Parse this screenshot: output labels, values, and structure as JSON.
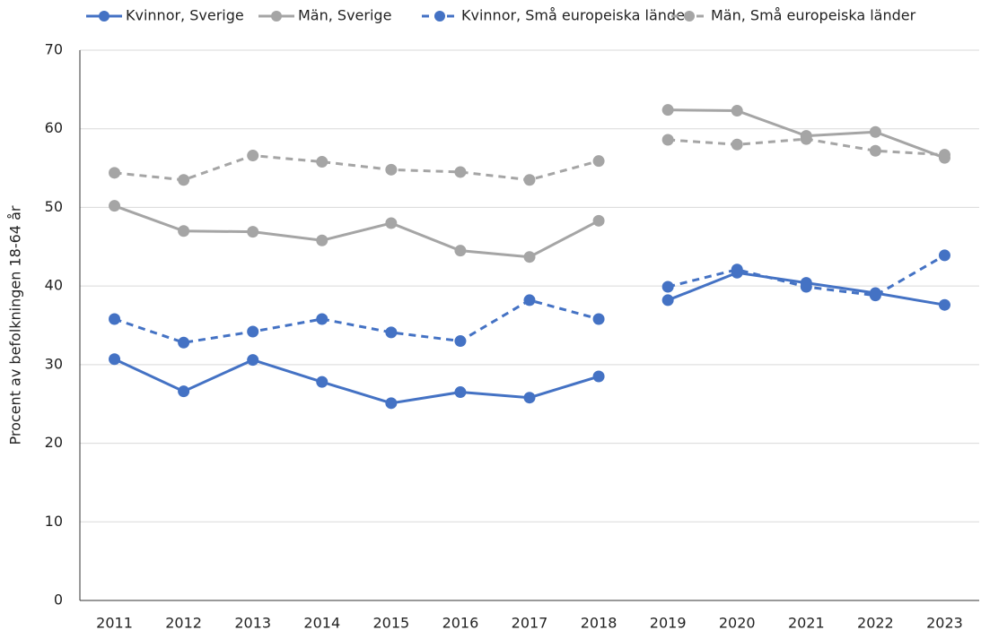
{
  "chart_data": {
    "type": "line",
    "y_label": "Procent av befolkningen 18-64 år",
    "categories": [
      2011,
      2012,
      2013,
      2014,
      2015,
      2016,
      2017,
      2018,
      2019,
      2020,
      2021,
      2022,
      2023
    ],
    "line_break_after": 2018,
    "ylim": [
      0,
      70
    ],
    "yticks": [
      0,
      10,
      20,
      30,
      40,
      50,
      60,
      70
    ],
    "grid": true,
    "legend": "top",
    "series": [
      {
        "name": "Kvinnor, Sverige",
        "color": "#4472c4",
        "dashed": false,
        "values": [
          30.7,
          26.6,
          30.6,
          27.8,
          25.1,
          26.5,
          25.8,
          28.5,
          38.2,
          41.7,
          40.4,
          39.1,
          37.6
        ]
      },
      {
        "name": "Män, Sverige",
        "color": "#a5a5a5",
        "dashed": false,
        "values": [
          50.2,
          47.0,
          46.9,
          45.8,
          48.0,
          44.5,
          43.7,
          48.3,
          62.4,
          62.3,
          59.1,
          59.6,
          56.3
        ]
      },
      {
        "name": "Kvinnor, Små europeiska länder",
        "color": "#4472c4",
        "dashed": true,
        "values": [
          35.8,
          32.8,
          34.2,
          35.8,
          34.1,
          33.0,
          38.2,
          35.8,
          39.9,
          42.1,
          39.9,
          38.8,
          43.9
        ]
      },
      {
        "name": "Män, Små europeiska länder",
        "color": "#a5a5a5",
        "dashed": true,
        "values": [
          54.4,
          53.5,
          56.6,
          55.8,
          54.8,
          54.5,
          53.5,
          55.9,
          58.6,
          58.0,
          58.7,
          57.2,
          56.7
        ]
      }
    ]
  }
}
